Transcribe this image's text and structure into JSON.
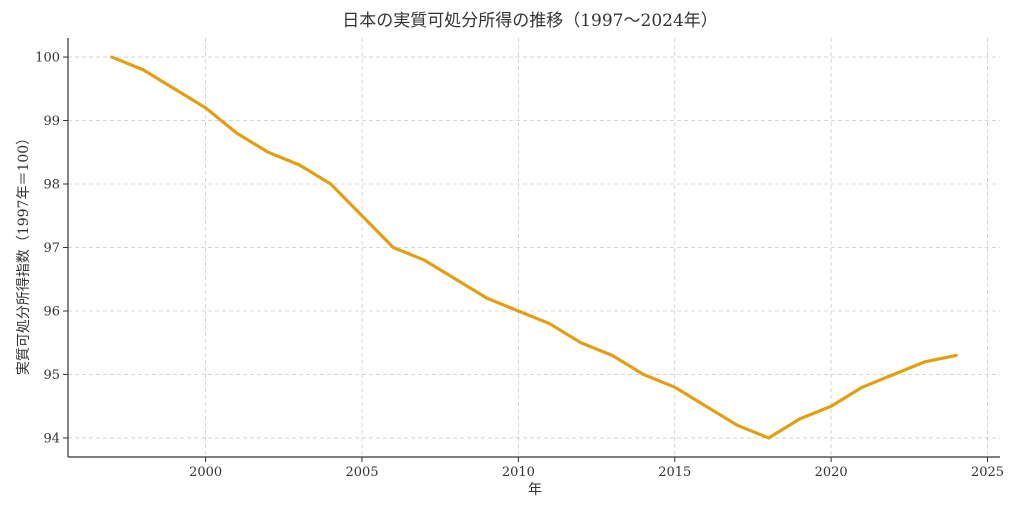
{
  "chart_data": {
    "type": "line",
    "title": "日本の実質可処分所得の推移（1997～2024年）",
    "xlabel": "年",
    "ylabel": "実質可処分所得指数（1997年＝100）",
    "xlim": [
      1995.6,
      2025.4
    ],
    "ylim": [
      93.7,
      100.3
    ],
    "xticks": [
      2000,
      2005,
      2010,
      2015,
      2020,
      2025
    ],
    "yticks": [
      94,
      95,
      96,
      97,
      98,
      99,
      100
    ],
    "grid": true,
    "color": "#E0A012",
    "series": [
      {
        "x": [
          1997,
          1998,
          1999,
          2000,
          2001,
          2002,
          2003,
          2004,
          2005,
          2006,
          2007,
          2008,
          2009,
          2010,
          2011,
          2012,
          2013,
          2014,
          2015,
          2016,
          2017,
          2018,
          2019,
          2020,
          2021,
          2022,
          2023,
          2024
        ],
        "y": [
          100.0,
          99.8,
          99.5,
          99.2,
          98.8,
          98.5,
          98.3,
          98.0,
          97.5,
          97.0,
          96.8,
          96.5,
          96.2,
          96.0,
          95.8,
          95.5,
          95.3,
          95.0,
          94.8,
          94.5,
          94.2,
          94.0,
          94.3,
          94.5,
          94.8,
          95.0,
          95.2,
          95.3
        ]
      }
    ]
  }
}
